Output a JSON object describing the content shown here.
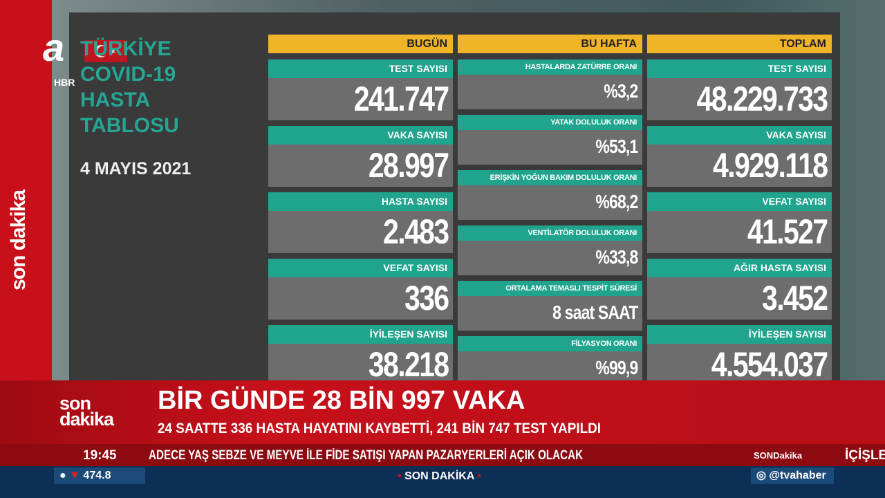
{
  "channel": {
    "logo": "a",
    "logo_sub": "HBR",
    "vertical_label": "son dakika"
  },
  "board": {
    "title_lines": [
      "TÜRKİYE",
      "COVID-19",
      "HASTA",
      "TABLOSU"
    ],
    "date": "4 MAYIS 2021",
    "columns": [
      {
        "header": "BUGÜN",
        "cards": [
          {
            "label": "TEST SAYISI",
            "value": "241.747"
          },
          {
            "label": "VAKA SAYISI",
            "value": "28.997"
          },
          {
            "label": "HASTA SAYISI",
            "value": "2.483"
          },
          {
            "label": "VEFAT SAYISI",
            "value": "336"
          },
          {
            "label": "İYİLEŞEN SAYISI",
            "value": "38.218"
          }
        ]
      },
      {
        "header": "BU HAFTA",
        "cards": [
          {
            "label": "HASTALARDA ZATÜRRE ORANI",
            "value": "%3,2"
          },
          {
            "label": "YATAK DOLULUK ORANI",
            "value": "%53,1"
          },
          {
            "label": "ERİŞKİN YOĞUN BAKIM DOLULUK ORANI",
            "value": "%68,2"
          },
          {
            "label": "VENTİLATÖR DOLULUK ORANI",
            "value": "%33,8"
          },
          {
            "label": "ORTALAMA TEMASLI TESPİT SÜRESİ",
            "value": "8 saat SAAT"
          },
          {
            "label": "FİLYASYON ORANI",
            "value": "%99,9"
          }
        ]
      },
      {
        "header": "TOPLAM",
        "cards": [
          {
            "label": "TEST SAYISI",
            "value": "48.229.733"
          },
          {
            "label": "VAKA SAYISI",
            "value": "4.929.118"
          },
          {
            "label": "VEFAT SAYISI",
            "value": "41.527"
          },
          {
            "label": "AĞIR HASTA SAYISI",
            "value": "3.452"
          },
          {
            "label": "İYİLEŞEN SAYISI",
            "value": "4.554.037"
          }
        ]
      }
    ]
  },
  "banner": {
    "logo_top": "son",
    "logo_bottom": "dakika",
    "headline": "BİR GÜNDE 28 BİN 997 VAKA",
    "subheadline": "24 SAATTE 336 HASTA HAYATINI KAYBETTİ, 241 BİN 747 TEST YAPILDI"
  },
  "ticker": {
    "time": "19:45",
    "text": "ADECE YAŞ SEBZE VE MEYVE İLE FİDE SATIŞI YAPAN PAZARYERLERİ AÇIK OLACAK",
    "tag": "SONDakika",
    "next": "İÇİŞLE"
  },
  "bottom": {
    "index_value": "474.8",
    "center": "SON DAKİKA",
    "social": "@tvahaber"
  },
  "colors": {
    "red": "#c8101a",
    "teal": "#20a48e",
    "yellow": "#f0b429",
    "navy": "#0e2f55"
  }
}
